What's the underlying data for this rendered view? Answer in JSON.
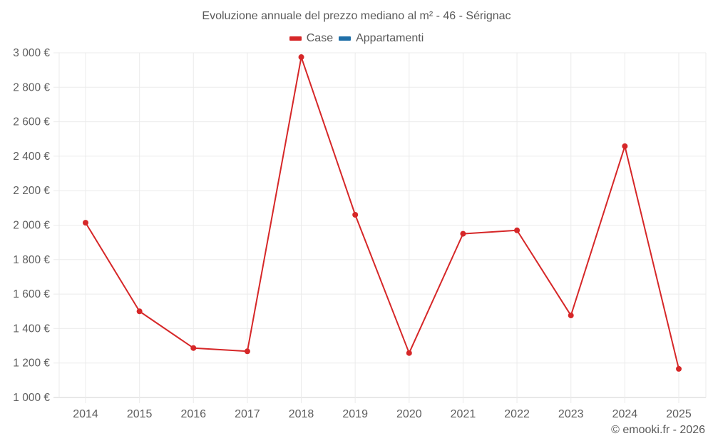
{
  "title": "Evoluzione annuale del prezzo mediano al m² - 46 - Sérignac",
  "legend": [
    {
      "label": "Case",
      "color": "#d62728"
    },
    {
      "label": "Appartamenti",
      "color": "#1f6fa8"
    }
  ],
  "credit": "© emooki.fr - 2026",
  "chart_data": {
    "type": "line",
    "title": "Evoluzione annuale del prezzo mediano al m² - 46 - Sérignac",
    "xlabel": "",
    "ylabel": "",
    "categories": [
      "2014",
      "2015",
      "2016",
      "2017",
      "2018",
      "2019",
      "2020",
      "2021",
      "2022",
      "2023",
      "2024",
      "2025"
    ],
    "series": [
      {
        "name": "Case",
        "color": "#d62728",
        "values": [
          2014,
          1500,
          1287,
          1268,
          2975,
          2060,
          1258,
          1950,
          1970,
          1476,
          2458,
          1166
        ]
      },
      {
        "name": "Appartamenti",
        "color": "#1f6fa8",
        "values": []
      }
    ],
    "ylim": [
      1000,
      3000
    ],
    "yticks": [
      1000,
      1200,
      1400,
      1600,
      1800,
      2000,
      2200,
      2400,
      2600,
      2800,
      3000
    ],
    "ytick_labels": [
      "1 000 €",
      "1 200 €",
      "1 400 €",
      "1 600 €",
      "1 800 €",
      "2 000 €",
      "2 200 €",
      "2 400 €",
      "2 600 €",
      "2 800 €",
      "3 000 €"
    ],
    "grid": true,
    "legend_position": "top"
  }
}
